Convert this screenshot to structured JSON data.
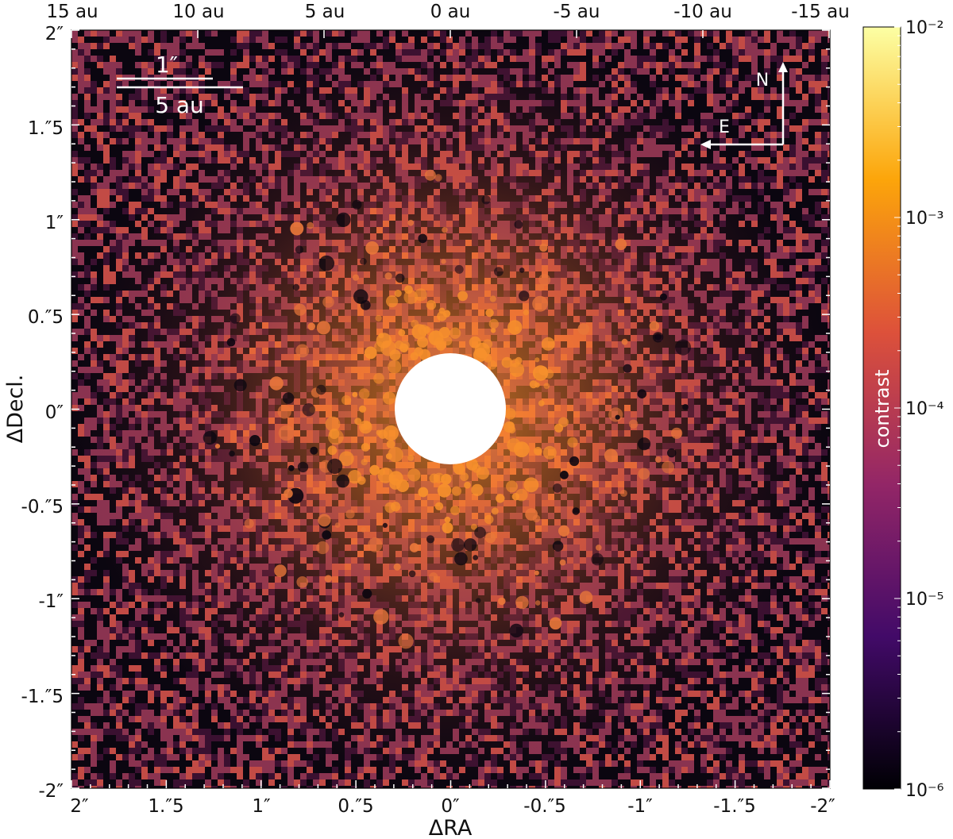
{
  "top_axis": {
    "tick_labels": [
      "15 au",
      "10 au",
      "5 au",
      "0 au",
      "-5 au",
      "-10 au",
      "-15 au"
    ]
  },
  "bottom_axis": {
    "tick_labels": [
      "2″",
      "1.″5",
      "1″",
      "0.″5",
      "0″",
      "-0.″5",
      "-1″",
      "-1.″5",
      "-2″"
    ],
    "label": "ΔRA"
  },
  "left_axis": {
    "tick_labels": [
      "2″",
      "1.″5",
      "1″",
      "0.″5",
      "0″",
      "-0.″5",
      "-1″",
      "-1.″5",
      "-2″"
    ],
    "label": "ΔDecl."
  },
  "scale_bar": {
    "arcsec_label": "1″",
    "au_label": "5 au"
  },
  "compass": {
    "north": "N",
    "east": "E"
  },
  "colorbar": {
    "label": "contrast",
    "tick_labels": [
      "10⁻²",
      "10⁻³",
      "10⁻⁴",
      "10⁻⁵",
      "10⁻⁶"
    ]
  },
  "colors": {
    "mask": "#ffffff",
    "overlay": "#ffffff",
    "colormap": [
      "#000004",
      "#420a68",
      "#932667",
      "#dd513a",
      "#fca50a",
      "#fcffa4"
    ]
  }
}
